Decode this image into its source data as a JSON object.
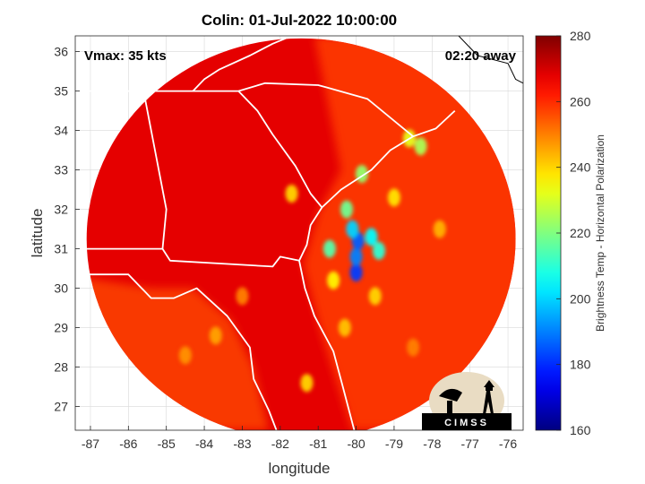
{
  "chart_data": {
    "type": "heatmap",
    "title": "Colin: 01-Jul-2022 10:00:00",
    "xlabel": "longitude",
    "ylabel": "latitude",
    "xlim": [
      -87.4,
      -75.6
    ],
    "ylim": [
      26.4,
      36.4
    ],
    "xticks": [
      -87,
      -86,
      -85,
      -84,
      -83,
      -82,
      -81,
      -80,
      -79,
      -78,
      -77,
      -76
    ],
    "yticks": [
      27,
      28,
      29,
      30,
      31,
      32,
      33,
      34,
      35,
      36
    ],
    "grid": true,
    "colorbar": {
      "label": "Brightness Temp - Horizontal Polarization",
      "range": [
        160,
        280
      ],
      "ticks": [
        160,
        180,
        200,
        220,
        240,
        260,
        280
      ],
      "colormap": "jet"
    },
    "swath": {
      "center_lon": -81.45,
      "center_lat": 31.25,
      "radius_deg": 5.65
    },
    "annotations": {
      "vmax": "Vmax: 35 kts",
      "time_away": "02:20 away"
    },
    "background_temp": 268,
    "ocean_temp": 258,
    "features": [
      {
        "lon": -80.0,
        "lat": 30.4,
        "value": 182
      },
      {
        "lon": -80.0,
        "lat": 30.8,
        "value": 190
      },
      {
        "lon": -79.95,
        "lat": 31.2,
        "value": 186
      },
      {
        "lon": -80.1,
        "lat": 31.5,
        "value": 200
      },
      {
        "lon": -79.6,
        "lat": 31.3,
        "value": 205
      },
      {
        "lon": -79.4,
        "lat": 30.95,
        "value": 210
      },
      {
        "lon": -80.7,
        "lat": 31.0,
        "value": 215
      },
      {
        "lon": -80.25,
        "lat": 32.0,
        "value": 218
      },
      {
        "lon": -79.85,
        "lat": 32.9,
        "value": 222
      },
      {
        "lon": -78.3,
        "lat": 33.6,
        "value": 225
      },
      {
        "lon": -78.6,
        "lat": 33.8,
        "value": 232
      },
      {
        "lon": -80.6,
        "lat": 30.2,
        "value": 236
      },
      {
        "lon": -79.5,
        "lat": 29.8,
        "value": 240
      },
      {
        "lon": -80.3,
        "lat": 29.0,
        "value": 242
      },
      {
        "lon": -79.0,
        "lat": 32.3,
        "value": 238
      },
      {
        "lon": -77.8,
        "lat": 31.5,
        "value": 244
      },
      {
        "lon": -81.7,
        "lat": 32.4,
        "value": 240
      },
      {
        "lon": -83.7,
        "lat": 28.8,
        "value": 246
      },
      {
        "lon": -84.5,
        "lat": 28.3,
        "value": 248
      },
      {
        "lon": -81.3,
        "lat": 27.6,
        "value": 240
      },
      {
        "lon": -78.5,
        "lat": 28.5,
        "value": 250
      },
      {
        "lon": -83.0,
        "lat": 29.8,
        "value": 250
      }
    ],
    "logo": {
      "text": "CIMSS"
    }
  },
  "colors": {
    "boundary": "#ffffff",
    "outside": "#ffffff",
    "gridline": "#d9d9d9"
  }
}
